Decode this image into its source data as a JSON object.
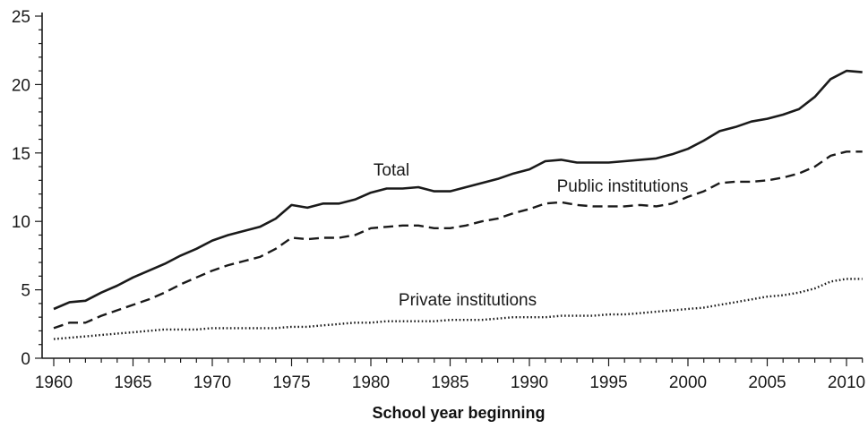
{
  "chart_data": {
    "type": "line",
    "title": "",
    "xlabel": "School year beginning",
    "ylabel": "",
    "xlim": [
      1960,
      2011
    ],
    "ylim": [
      0,
      25
    ],
    "x_ticks": [
      "1960",
      "1965",
      "1970",
      "1975",
      "1980",
      "1985",
      "1990",
      "1995",
      "2000",
      "2005",
      "2010"
    ],
    "y_ticks": [
      "0",
      "5",
      "10",
      "15",
      "20",
      "25"
    ],
    "grid": false,
    "legend": "none (series labelled directly on the plot)",
    "x": [
      1960,
      1961,
      1962,
      1963,
      1964,
      1965,
      1966,
      1967,
      1968,
      1969,
      1970,
      1971,
      1972,
      1973,
      1974,
      1975,
      1976,
      1977,
      1978,
      1979,
      1980,
      1981,
      1982,
      1983,
      1984,
      1985,
      1986,
      1987,
      1988,
      1989,
      1990,
      1991,
      1992,
      1993,
      1994,
      1995,
      1996,
      1997,
      1998,
      1999,
      2000,
      2001,
      2002,
      2003,
      2004,
      2005,
      2006,
      2007,
      2008,
      2009,
      2010,
      2011
    ],
    "series": [
      {
        "name": "Total",
        "style": "solid",
        "color": "#1a1a1a",
        "values": [
          3.6,
          4.1,
          4.2,
          4.8,
          5.3,
          5.9,
          6.4,
          6.9,
          7.5,
          8.0,
          8.6,
          9.0,
          9.3,
          9.6,
          10.2,
          11.2,
          11.0,
          11.3,
          11.3,
          11.6,
          12.1,
          12.4,
          12.4,
          12.5,
          12.2,
          12.2,
          12.5,
          12.8,
          13.1,
          13.5,
          13.8,
          14.4,
          14.5,
          14.3,
          14.3,
          14.3,
          14.4,
          14.5,
          14.6,
          14.9,
          15.3,
          15.9,
          16.6,
          16.9,
          17.3,
          17.5,
          17.8,
          18.2,
          19.1,
          20.4,
          21.0,
          20.9
        ]
      },
      {
        "name": "Public institutions",
        "style": "dashed",
        "color": "#1a1a1a",
        "values": [
          2.2,
          2.6,
          2.6,
          3.1,
          3.5,
          3.9,
          4.3,
          4.8,
          5.4,
          5.9,
          6.4,
          6.8,
          7.1,
          7.4,
          8.0,
          8.8,
          8.7,
          8.8,
          8.8,
          9.0,
          9.5,
          9.6,
          9.7,
          9.7,
          9.5,
          9.5,
          9.7,
          10.0,
          10.2,
          10.6,
          10.9,
          11.3,
          11.4,
          11.2,
          11.1,
          11.1,
          11.1,
          11.2,
          11.1,
          11.3,
          11.8,
          12.2,
          12.8,
          12.9,
          12.9,
          13.0,
          13.2,
          13.5,
          14.0,
          14.8,
          15.1,
          15.1
        ]
      },
      {
        "name": "Private institutions",
        "style": "dotted",
        "color": "#1a1a1a",
        "values": [
          1.4,
          1.5,
          1.6,
          1.7,
          1.8,
          1.9,
          2.0,
          2.1,
          2.1,
          2.1,
          2.2,
          2.2,
          2.2,
          2.2,
          2.2,
          2.3,
          2.3,
          2.4,
          2.5,
          2.6,
          2.6,
          2.7,
          2.7,
          2.7,
          2.7,
          2.8,
          2.8,
          2.8,
          2.9,
          3.0,
          3.0,
          3.0,
          3.1,
          3.1,
          3.1,
          3.2,
          3.2,
          3.3,
          3.4,
          3.5,
          3.6,
          3.7,
          3.9,
          4.1,
          4.3,
          4.5,
          4.6,
          4.8,
          5.1,
          5.6,
          5.8,
          5.8
        ]
      }
    ]
  }
}
